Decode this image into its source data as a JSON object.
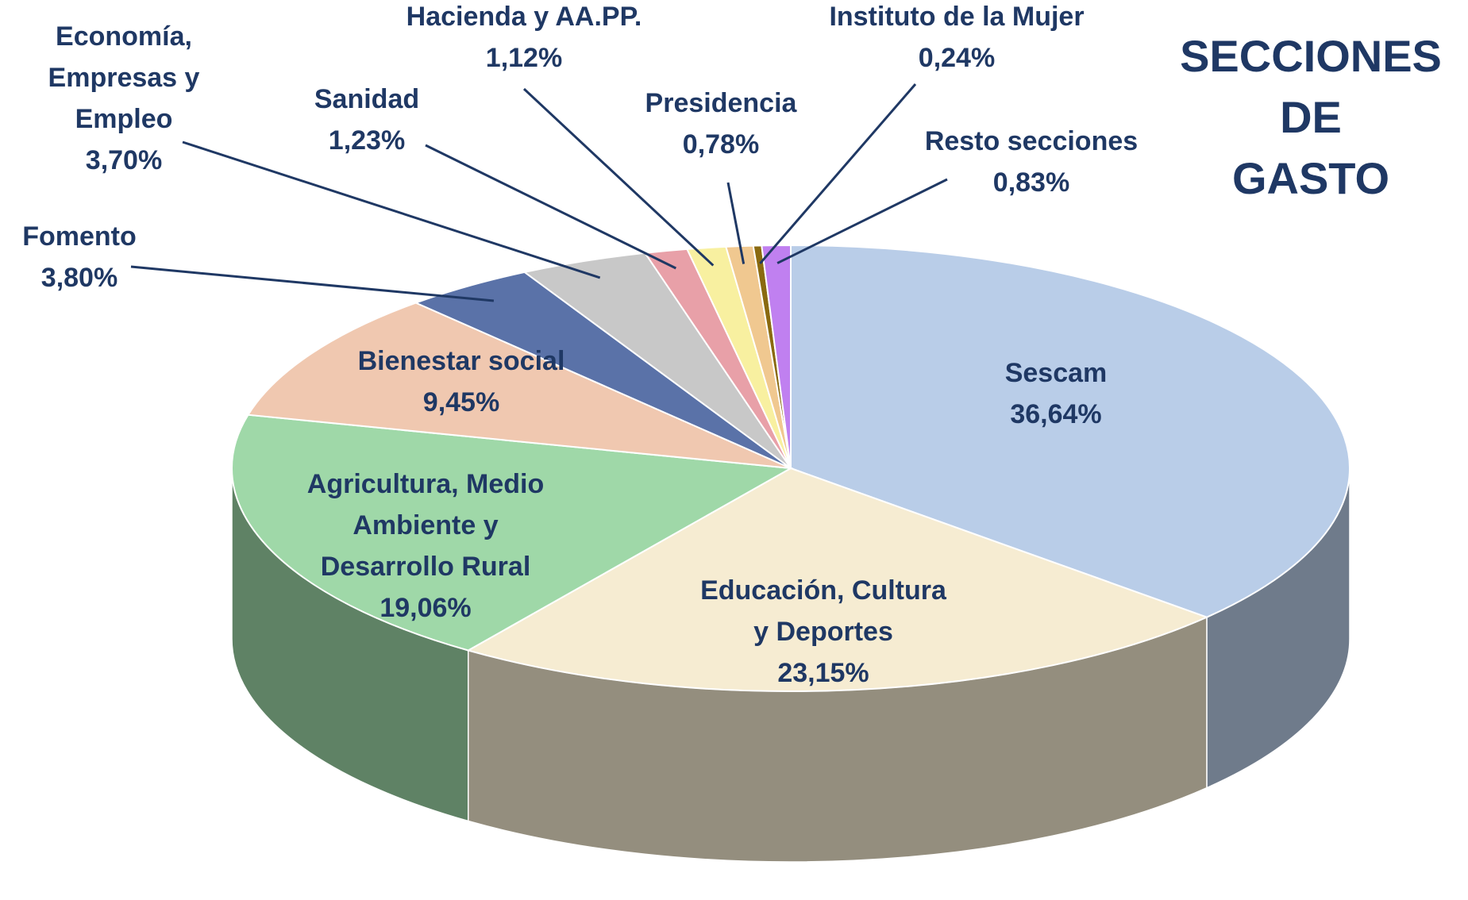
{
  "chart_data": {
    "type": "pie",
    "title": "SECCIONES DE GASTO",
    "categories": [
      "Sescam",
      "Educación, Cultura y Deportes",
      "Agricultura, Medio Ambiente y Desarrollo Rural",
      "Bienestar social",
      "Fomento",
      "Economía, Empresas y Empleo",
      "Sanidad",
      "Hacienda y AA.PP.",
      "Presidencia",
      "Instituto de la Mujer",
      "Resto secciones"
    ],
    "values": [
      36.64,
      23.15,
      19.06,
      9.45,
      3.8,
      3.7,
      1.23,
      1.12,
      0.78,
      0.24,
      0.83
    ],
    "value_labels": [
      "36,64%",
      "23,15%",
      "19,06%",
      "9,45%",
      "3,80%",
      "3,70%",
      "1,23%",
      "1,12%",
      "0,78%",
      "0,24%",
      "0,83%"
    ],
    "colors": [
      "#b9cde8",
      "#f6ecd2",
      "#9fd8a8",
      "#f0c8b0",
      "#5a72a8",
      "#c8c8c8",
      "#e8a0a8",
      "#f8f0a0",
      "#f0c890",
      "#8a6a10",
      "#c080f0"
    ]
  }
}
